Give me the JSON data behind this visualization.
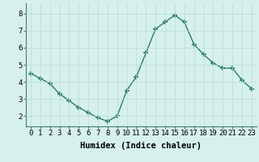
{
  "x": [
    0,
    1,
    2,
    3,
    4,
    5,
    6,
    7,
    8,
    9,
    10,
    11,
    12,
    13,
    14,
    15,
    16,
    17,
    18,
    19,
    20,
    21,
    22,
    23
  ],
  "y": [
    4.5,
    4.2,
    3.9,
    3.3,
    2.9,
    2.5,
    2.2,
    1.9,
    1.7,
    2.0,
    3.5,
    4.3,
    5.7,
    7.1,
    7.5,
    7.9,
    7.5,
    6.2,
    5.6,
    5.1,
    4.8,
    4.8,
    4.1,
    3.6
  ],
  "line_color": "#2d7a6e",
  "marker": "+",
  "marker_size": 5,
  "bg_color": "#d6f0eb",
  "grid_color": "#b8ddd7",
  "xlabel": "Humidex (Indice chaleur)",
  "xlim": [
    -0.5,
    23.5
  ],
  "ylim": [
    1.4,
    8.6
  ],
  "yticks": [
    2,
    3,
    4,
    5,
    6,
    7,
    8
  ],
  "xtick_labels": [
    "0",
    "1",
    "2",
    "3",
    "4",
    "5",
    "6",
    "7",
    "8",
    "9",
    "10",
    "11",
    "12",
    "13",
    "14",
    "15",
    "16",
    "17",
    "18",
    "19",
    "20",
    "21",
    "22",
    "23"
  ],
  "xlabel_fontsize": 7.5,
  "tick_fontsize": 6.5,
  "line_width": 1.0,
  "marker_color": "#2d7a6e"
}
